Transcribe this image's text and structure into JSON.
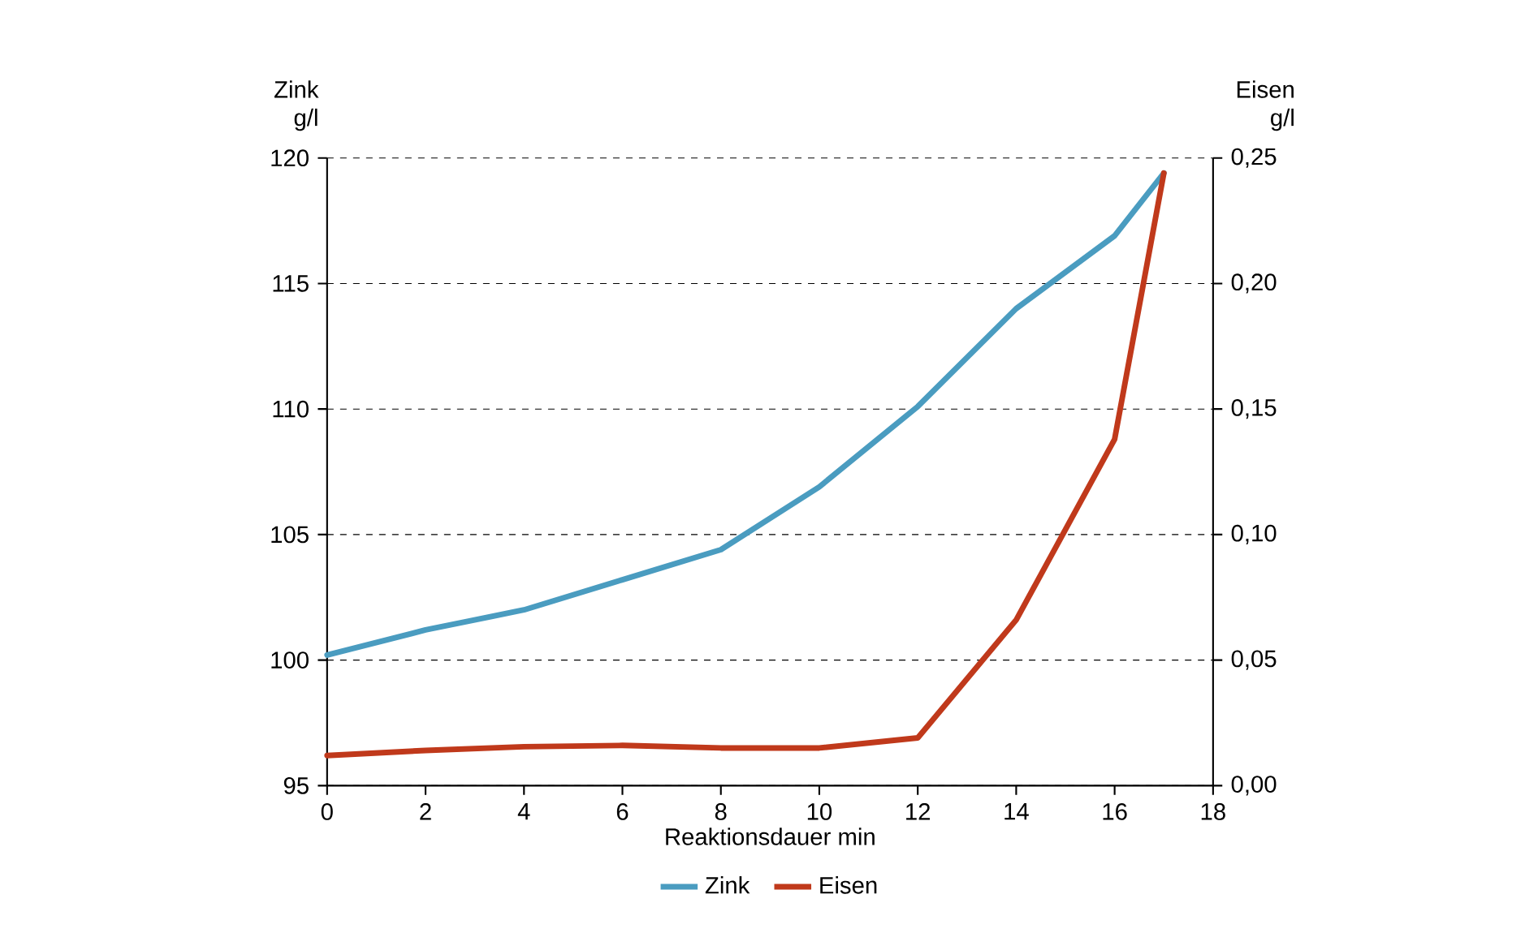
{
  "chart_data": {
    "type": "line",
    "xlabel": "Reaktionsdauer min",
    "ylabel": "Zink g/l",
    "y2label": "Eisen g/l",
    "x": [
      0,
      2,
      4,
      6,
      8,
      10,
      12,
      14,
      16,
      17
    ],
    "series": [
      {
        "name": "Zink",
        "color": "#4a9cc0",
        "values": [
          100.2,
          101.2,
          102.0,
          103.2,
          104.4,
          106.9,
          110.1,
          114.0,
          116.9,
          119.4
        ]
      },
      {
        "name": "Eisen",
        "color": "#c0391b",
        "axis": "y2",
        "values": [
          0.012,
          0.014,
          0.0155,
          0.016,
          0.015,
          0.015,
          0.019,
          0.066,
          0.138,
          0.244
        ]
      }
    ],
    "xlim": [
      0,
      18
    ],
    "xticks": [
      0,
      2,
      4,
      6,
      8,
      10,
      12,
      14,
      16,
      18
    ],
    "ylim": [
      95,
      120
    ],
    "yticks": [
      95,
      100,
      105,
      110,
      115,
      120
    ],
    "y2lim": [
      0,
      0.25
    ],
    "y2ticks": [
      {
        "value": 0,
        "label": "0,00"
      },
      {
        "value": 0.05,
        "label": "0,05"
      },
      {
        "value": 0.1,
        "label": "0,10"
      },
      {
        "value": 0.15,
        "label": "0,15"
      },
      {
        "value": 0.2,
        "label": "0,20"
      },
      {
        "value": 0.25,
        "label": "0,25"
      }
    ],
    "grid": "y",
    "legend": "bottom",
    "marker": "none",
    "line_style": "solid"
  }
}
